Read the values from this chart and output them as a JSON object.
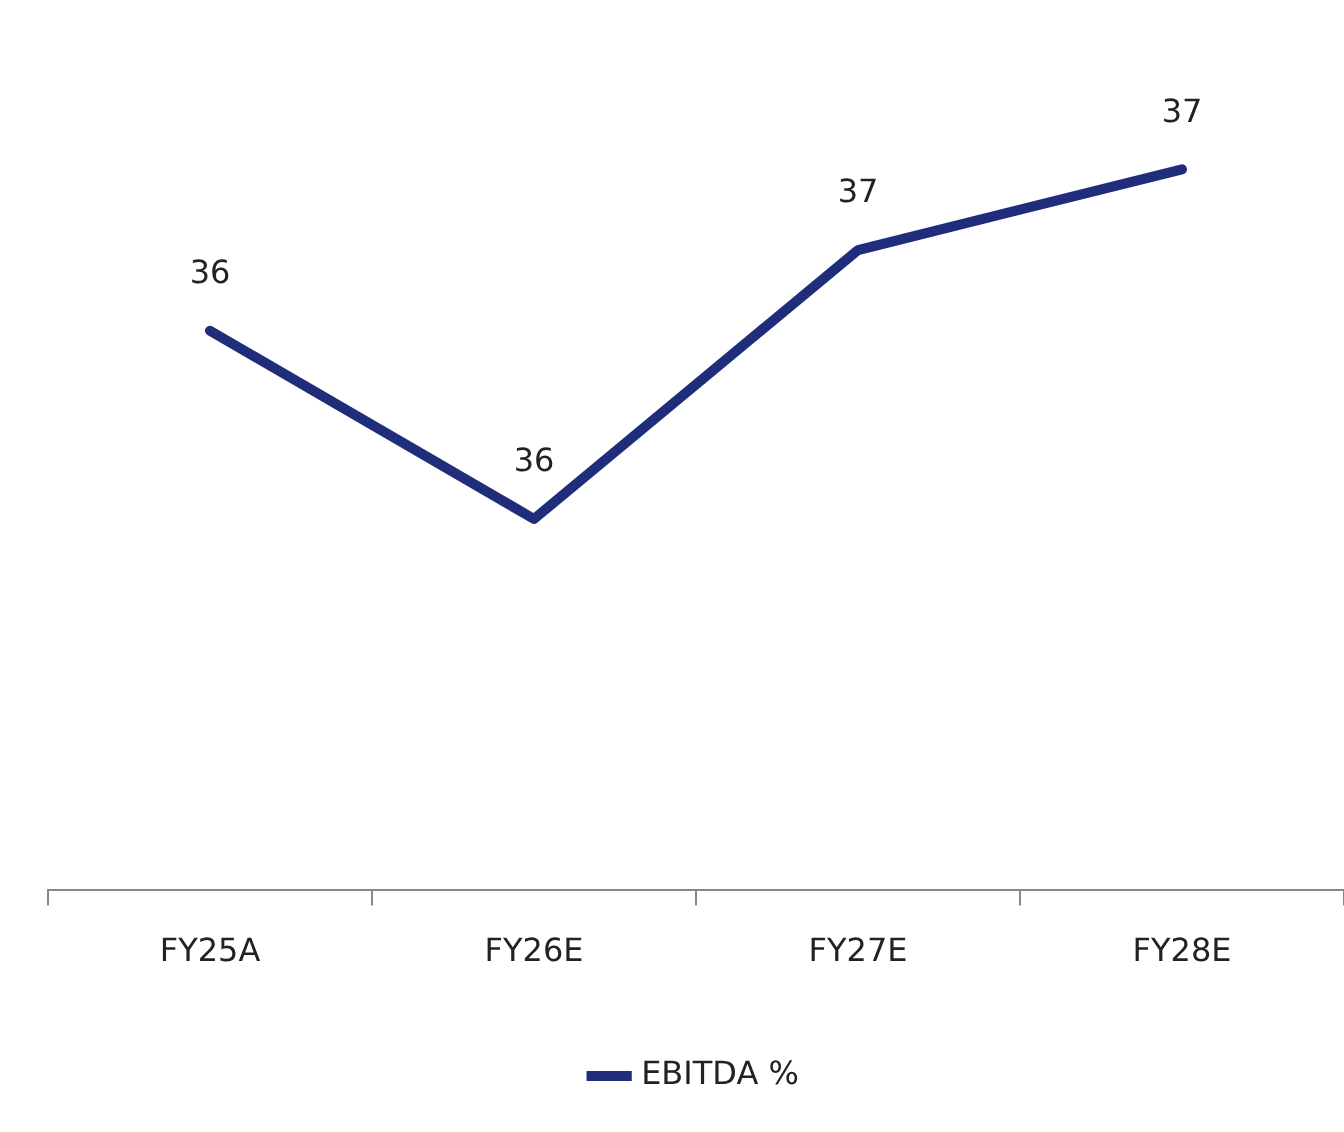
{
  "chart_data": {
    "type": "line",
    "categories": [
      "FY25A",
      "FY26E",
      "FY27E",
      "FY28E"
    ],
    "series": [
      {
        "name": "EBITDA %",
        "color": "#1f2d7b",
        "values": [
          36.3,
          35.6,
          36.6,
          36.9
        ],
        "value_labels": [
          "36",
          "36",
          "37",
          "37"
        ]
      }
    ],
    "legend": "bottom",
    "marker": "none",
    "line_style": "solid",
    "grid": false
  }
}
